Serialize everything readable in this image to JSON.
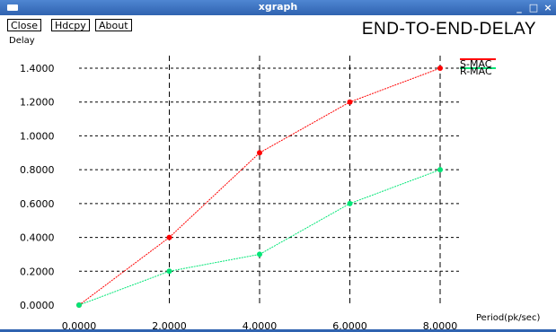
{
  "window": {
    "title": "xgraph",
    "controls": [
      "_",
      "□",
      "×"
    ]
  },
  "toolbar": {
    "close_label": "Close",
    "hdcpy_label": "Hdcpy",
    "about_label": "About"
  },
  "chart_data": {
    "type": "line",
    "title": "END-TO-END-DELAY",
    "ylabel": "Delay",
    "xlabel": "Period(pk/sec)",
    "xlim": [
      0,
      8
    ],
    "ylim": [
      0,
      1.4
    ],
    "grid": true,
    "legend_position": "top-right",
    "x_ticks": [
      0,
      2,
      4,
      6,
      8
    ],
    "x_tick_labels": [
      "0.0000",
      "2.0000",
      "4.0000",
      "6.0000",
      "8.0000"
    ],
    "y_ticks": [
      0,
      0.2,
      0.4,
      0.6,
      0.8,
      1.0,
      1.2,
      1.4
    ],
    "y_tick_labels": [
      "0.0000",
      "0.2000",
      "0.4000",
      "0.6000",
      "0.8000",
      "1.0000",
      "1.2000",
      "1.4000"
    ],
    "series": [
      {
        "name": "S-MAC",
        "color": "#ff0000",
        "x": [
          0,
          2,
          4,
          6,
          8
        ],
        "y": [
          0.0,
          0.4,
          0.9,
          1.2,
          1.4
        ]
      },
      {
        "name": "R-MAC",
        "color": "#00e676",
        "x": [
          0,
          2,
          4,
          6,
          8
        ],
        "y": [
          0.0,
          0.2,
          0.3,
          0.6,
          0.8
        ]
      }
    ]
  }
}
